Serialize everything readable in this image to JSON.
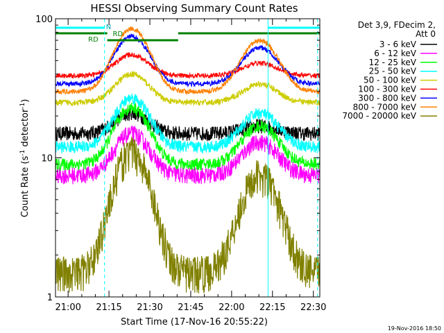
{
  "chart_data": {
    "type": "line",
    "title": "HESSI Observing Summary Count Rates",
    "xlabel": "Start Time (17-Nov-16 20:55:22)",
    "ylabel_main": "Count Rate (s",
    "ylabel_sup1": "-1",
    "ylabel_mid": " detector",
    "ylabel_sup2": "-1",
    "ylabel_end": ")",
    "ylabel": "Count Rate (s-1 detector-1)",
    "y_scale": "log",
    "ylim": [
      1,
      100
    ],
    "xlim_minutes": [
      0,
      97
    ],
    "x_ticks": [
      {
        "label": "21:00",
        "minute": 4.63
      },
      {
        "label": "21:15",
        "minute": 19.63
      },
      {
        "label": "21:30",
        "minute": 34.63
      },
      {
        "label": "21:45",
        "minute": 49.63
      },
      {
        "label": "22:00",
        "minute": 64.63
      },
      {
        "label": "22:15",
        "minute": 79.63
      },
      {
        "label": "22:30",
        "minute": 94.63
      }
    ],
    "y_ticks": [
      {
        "label": "1",
        "value": 1
      },
      {
        "label": "10",
        "value": 10
      },
      {
        "label": "100",
        "value": 100
      }
    ],
    "legend_header": [
      "Det 3,9, FDecim 2,",
      "Att 0"
    ],
    "legend_placement": "right",
    "series": [
      {
        "name": "3 - 6 keV",
        "color": "#000000",
        "base": 15,
        "peak1": 21,
        "peak2": 17,
        "noise": 0.12
      },
      {
        "name": "6 - 12 keV",
        "color": "#ff00ff",
        "base": 7.5,
        "peak1": 15,
        "peak2": 13,
        "noise": 0.14
      },
      {
        "name": "12 - 25 keV",
        "color": "#00ff00",
        "base": 9,
        "peak1": 23,
        "peak2": 17,
        "noise": 0.1
      },
      {
        "name": "25 - 50 keV",
        "color": "#00ffff",
        "base": 12,
        "peak1": 27,
        "peak2": 21,
        "noise": 0.1
      },
      {
        "name": "50 - 100 keV",
        "color": "#cccc00",
        "base": 25,
        "peak1": 40,
        "peak2": 34,
        "noise": 0.05
      },
      {
        "name": "100 - 300 keV",
        "color": "#ff0000",
        "base": 39,
        "peak1": 55,
        "peak2": 48,
        "noise": 0.04
      },
      {
        "name": "300 - 800 keV",
        "color": "#0000ff",
        "base": 34,
        "peak1": 75,
        "peak2": 62,
        "noise": 0.04
      },
      {
        "name": "800 - 7000 keV",
        "color": "#ff8000",
        "base": 30,
        "peak1": 85,
        "peak2": 70,
        "noise": 0.04
      },
      {
        "name": "7000 - 20000 keV",
        "color": "#808000",
        "base": 1.5,
        "peak1": 11,
        "peak2": 7.5,
        "noise": 0.3
      }
    ],
    "flags": {
      "saa_label": "N",
      "rd_labels": [
        "RD",
        "RD"
      ],
      "cyan_segments_minutes": [
        [
          0,
          18
        ],
        [
          78,
          97
        ]
      ],
      "green_segments_minutes": [
        [
          0,
          19
        ],
        [
          19,
          45
        ],
        [
          45,
          97
        ]
      ]
    },
    "vlines_solid_minutes": [
      0,
      78
    ],
    "vlines_dashed_minutes": [
      18,
      96.2
    ],
    "footer_date": "19-Nov-2016 18:50"
  }
}
